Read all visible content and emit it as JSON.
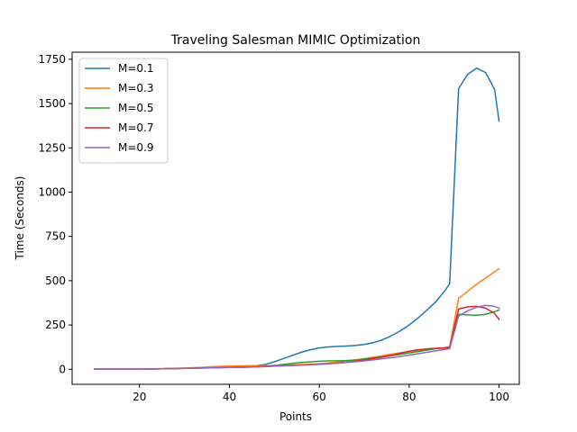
{
  "chart_data": {
    "type": "line",
    "title": "Traveling Salesman MIMIC Optimization",
    "xlabel": "Points",
    "ylabel": "Time (Seconds)",
    "xlim": [
      5,
      104.5
    ],
    "ylim": [
      -85,
      1790
    ],
    "xticks": [
      20,
      40,
      60,
      80,
      100
    ],
    "yticks": [
      0,
      250,
      500,
      750,
      1000,
      1250,
      1500,
      1750
    ],
    "grid": false,
    "legend_position": "top-left",
    "x": [
      10,
      12,
      14,
      16,
      18,
      20,
      22,
      24,
      26,
      28,
      30,
      32,
      34,
      36,
      38,
      40,
      42,
      44,
      46,
      48,
      50,
      52,
      54,
      56,
      58,
      60,
      62,
      64,
      66,
      68,
      70,
      72,
      74,
      76,
      78,
      80,
      82,
      84,
      86,
      88,
      89,
      91,
      93,
      95,
      97,
      99,
      100
    ],
    "series": [
      {
        "name": "M=0.1",
        "color": "#1f77b4",
        "values": [
          1,
          1,
          1,
          1,
          1,
          1,
          1,
          2,
          3,
          4,
          6,
          7,
          9,
          11,
          13,
          15,
          16,
          18,
          20,
          27,
          42,
          60,
          78,
          96,
          110,
          120,
          126,
          129,
          131,
          134,
          140,
          150,
          166,
          188,
          216,
          250,
          290,
          335,
          383,
          445,
          483,
          1585,
          1665,
          1700,
          1675,
          1580,
          1400
        ]
      },
      {
        "name": "M=0.3",
        "color": "#ff7f0e",
        "values": [
          1,
          1,
          1,
          1,
          1,
          1,
          2,
          3,
          4,
          5,
          7,
          9,
          11,
          14,
          16,
          18,
          19,
          20,
          20,
          20,
          21,
          22,
          24,
          26,
          28,
          31,
          35,
          40,
          46,
          53,
          60,
          68,
          76,
          85,
          93,
          100,
          106,
          112,
          117,
          122,
          127,
          400,
          440,
          480,
          515,
          550,
          568
        ]
      },
      {
        "name": "M=0.5",
        "color": "#2ca02c",
        "values": [
          1,
          1,
          1,
          1,
          1,
          1,
          1,
          2,
          3,
          4,
          5,
          6,
          7,
          8,
          9,
          10,
          11,
          12,
          13,
          16,
          21,
          27,
          33,
          38,
          42,
          45,
          47,
          48,
          49,
          52,
          57,
          63,
          70,
          77,
          84,
          92,
          100,
          108,
          116,
          121,
          125,
          310,
          307,
          305,
          310,
          325,
          335
        ]
      },
      {
        "name": "M=0.7",
        "color": "#d62728",
        "values": [
          1,
          1,
          1,
          1,
          1,
          1,
          1,
          2,
          3,
          4,
          5,
          6,
          7,
          8,
          9,
          10,
          11,
          12,
          14,
          16,
          18,
          20,
          22,
          24,
          26,
          28,
          31,
          35,
          39,
          45,
          52,
          60,
          68,
          78,
          90,
          102,
          110,
          115,
          118,
          120,
          122,
          340,
          352,
          355,
          345,
          315,
          282
        ]
      },
      {
        "name": "M=0.9",
        "color": "#9467bd",
        "values": [
          1,
          1,
          1,
          1,
          1,
          1,
          1,
          2,
          3,
          4,
          5,
          6,
          7,
          8,
          9,
          10,
          11,
          12,
          13,
          15,
          17,
          19,
          21,
          23,
          25,
          28,
          31,
          34,
          38,
          42,
          47,
          53,
          59,
          65,
          72,
          80,
          88,
          96,
          104,
          112,
          116,
          300,
          330,
          350,
          360,
          355,
          345
        ]
      }
    ]
  }
}
